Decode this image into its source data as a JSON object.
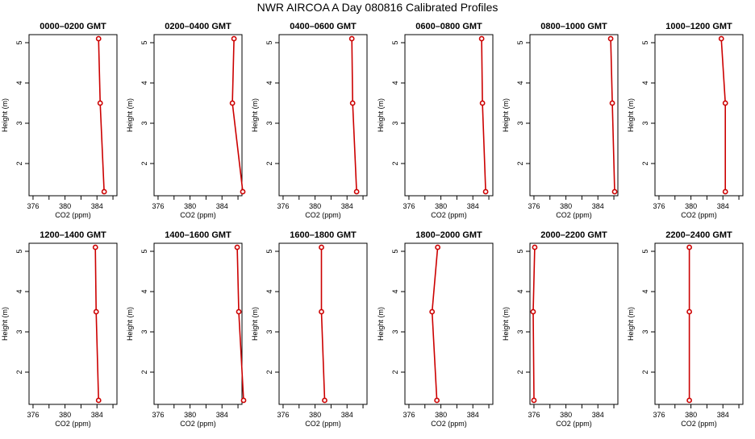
{
  "figure": {
    "title": "NWR AIRCOA A  Day 080816  Calibrated Profiles"
  },
  "style": {
    "line_color": "#cc0000",
    "marker_color": "#cc0000",
    "axis_color": "#000000"
  },
  "chart_data": [
    {
      "type": "line",
      "title": "0000–0200 GMT",
      "xlabel": "CO2 (ppm)",
      "ylabel": "Height (m)",
      "xlim": [
        375.5,
        386.5
      ],
      "ylim": [
        1.2,
        5.2
      ],
      "xticks": [
        376,
        380,
        384
      ],
      "yticks": [
        2,
        3,
        4,
        5
      ],
      "x": [
        384.2,
        384.4,
        384.9
      ],
      "y": [
        5.1,
        3.5,
        1.3
      ]
    },
    {
      "type": "line",
      "title": "0200–0400 GMT",
      "xlabel": "CO2 (ppm)",
      "ylabel": "Height (m)",
      "xlim": [
        375.5,
        386.5
      ],
      "ylim": [
        1.2,
        5.2
      ],
      "xticks": [
        376,
        380,
        384
      ],
      "yticks": [
        2,
        3,
        4,
        5
      ],
      "x": [
        385.5,
        385.3,
        386.6
      ],
      "y": [
        5.1,
        3.5,
        1.3
      ]
    },
    {
      "type": "line",
      "title": "0400–0600 GMT",
      "xlabel": "CO2 (ppm)",
      "ylabel": "Height (m)",
      "xlim": [
        375.5,
        386.5
      ],
      "ylim": [
        1.2,
        5.2
      ],
      "xticks": [
        376,
        380,
        384
      ],
      "yticks": [
        2,
        3,
        4,
        5
      ],
      "x": [
        384.6,
        384.7,
        385.2
      ],
      "y": [
        5.1,
        3.5,
        1.3
      ]
    },
    {
      "type": "line",
      "title": "0600–0800 GMT",
      "xlabel": "CO2 (ppm)",
      "ylabel": "Height (m)",
      "xlim": [
        375.5,
        386.5
      ],
      "ylim": [
        1.2,
        5.2
      ],
      "xticks": [
        376,
        380,
        384
      ],
      "yticks": [
        2,
        3,
        4,
        5
      ],
      "x": [
        385.1,
        385.2,
        385.6
      ],
      "y": [
        5.1,
        3.5,
        1.3
      ]
    },
    {
      "type": "line",
      "title": "0800–1000 GMT",
      "xlabel": "CO2 (ppm)",
      "ylabel": "Height (m)",
      "xlim": [
        375.5,
        386.5
      ],
      "ylim": [
        1.2,
        5.2
      ],
      "xticks": [
        376,
        380,
        384
      ],
      "yticks": [
        2,
        3,
        4,
        5
      ],
      "x": [
        385.6,
        385.8,
        386.1
      ],
      "y": [
        5.1,
        3.5,
        1.3
      ]
    },
    {
      "type": "line",
      "title": "1000–1200 GMT",
      "xlabel": "CO2 (ppm)",
      "ylabel": "Height (m)",
      "xlim": [
        375.5,
        386.5
      ],
      "ylim": [
        1.2,
        5.2
      ],
      "xticks": [
        376,
        380,
        384
      ],
      "yticks": [
        2,
        3,
        4,
        5
      ],
      "x": [
        383.8,
        384.3,
        384.3
      ],
      "y": [
        5.1,
        3.5,
        1.3
      ]
    },
    {
      "type": "line",
      "title": "1200–1400 GMT",
      "xlabel": "CO2 (ppm)",
      "ylabel": "Height (m)",
      "xlim": [
        375.5,
        386.5
      ],
      "ylim": [
        1.2,
        5.2
      ],
      "xticks": [
        376,
        380,
        384
      ],
      "yticks": [
        2,
        3,
        4,
        5
      ],
      "x": [
        383.8,
        383.9,
        384.2
      ],
      "y": [
        5.1,
        3.5,
        1.3
      ]
    },
    {
      "type": "line",
      "title": "1400–1600 GMT",
      "xlabel": "CO2 (ppm)",
      "ylabel": "Height (m)",
      "xlim": [
        375.5,
        386.5
      ],
      "ylim": [
        1.2,
        5.2
      ],
      "xticks": [
        376,
        380,
        384
      ],
      "yticks": [
        2,
        3,
        4,
        5
      ],
      "x": [
        385.9,
        386.1,
        386.7
      ],
      "y": [
        5.1,
        3.5,
        1.3
      ]
    },
    {
      "type": "line",
      "title": "1600–1800 GMT",
      "xlabel": "CO2 (ppm)",
      "ylabel": "Height (m)",
      "xlim": [
        375.5,
        386.5
      ],
      "ylim": [
        1.2,
        5.2
      ],
      "xticks": [
        376,
        380,
        384
      ],
      "yticks": [
        2,
        3,
        4,
        5
      ],
      "x": [
        380.8,
        380.8,
        381.2
      ],
      "y": [
        5.1,
        3.5,
        1.3
      ]
    },
    {
      "type": "line",
      "title": "1800–2000 GMT",
      "xlabel": "CO2 (ppm)",
      "ylabel": "Height (m)",
      "xlim": [
        375.5,
        386.5
      ],
      "ylim": [
        1.2,
        5.2
      ],
      "xticks": [
        376,
        380,
        384
      ],
      "yticks": [
        2,
        3,
        4,
        5
      ],
      "x": [
        379.6,
        378.9,
        379.5
      ],
      "y": [
        5.1,
        3.5,
        1.3
      ]
    },
    {
      "type": "line",
      "title": "2000–2200 GMT",
      "xlabel": "CO2 (ppm)",
      "ylabel": "Height (m)",
      "xlim": [
        375.5,
        386.5
      ],
      "ylim": [
        1.2,
        5.2
      ],
      "xticks": [
        376,
        380,
        384
      ],
      "yticks": [
        2,
        3,
        4,
        5
      ],
      "x": [
        376.1,
        375.9,
        376.0
      ],
      "y": [
        5.1,
        3.5,
        1.3
      ]
    },
    {
      "type": "line",
      "title": "2200–2400 GMT",
      "xlabel": "CO2 (ppm)",
      "ylabel": "Height (m)",
      "xlim": [
        375.5,
        386.5
      ],
      "ylim": [
        1.2,
        5.2
      ],
      "xticks": [
        376,
        380,
        384
      ],
      "yticks": [
        2,
        3,
        4,
        5
      ],
      "x": [
        379.8,
        379.8,
        379.8
      ],
      "y": [
        5.1,
        3.5,
        1.3
      ]
    }
  ]
}
